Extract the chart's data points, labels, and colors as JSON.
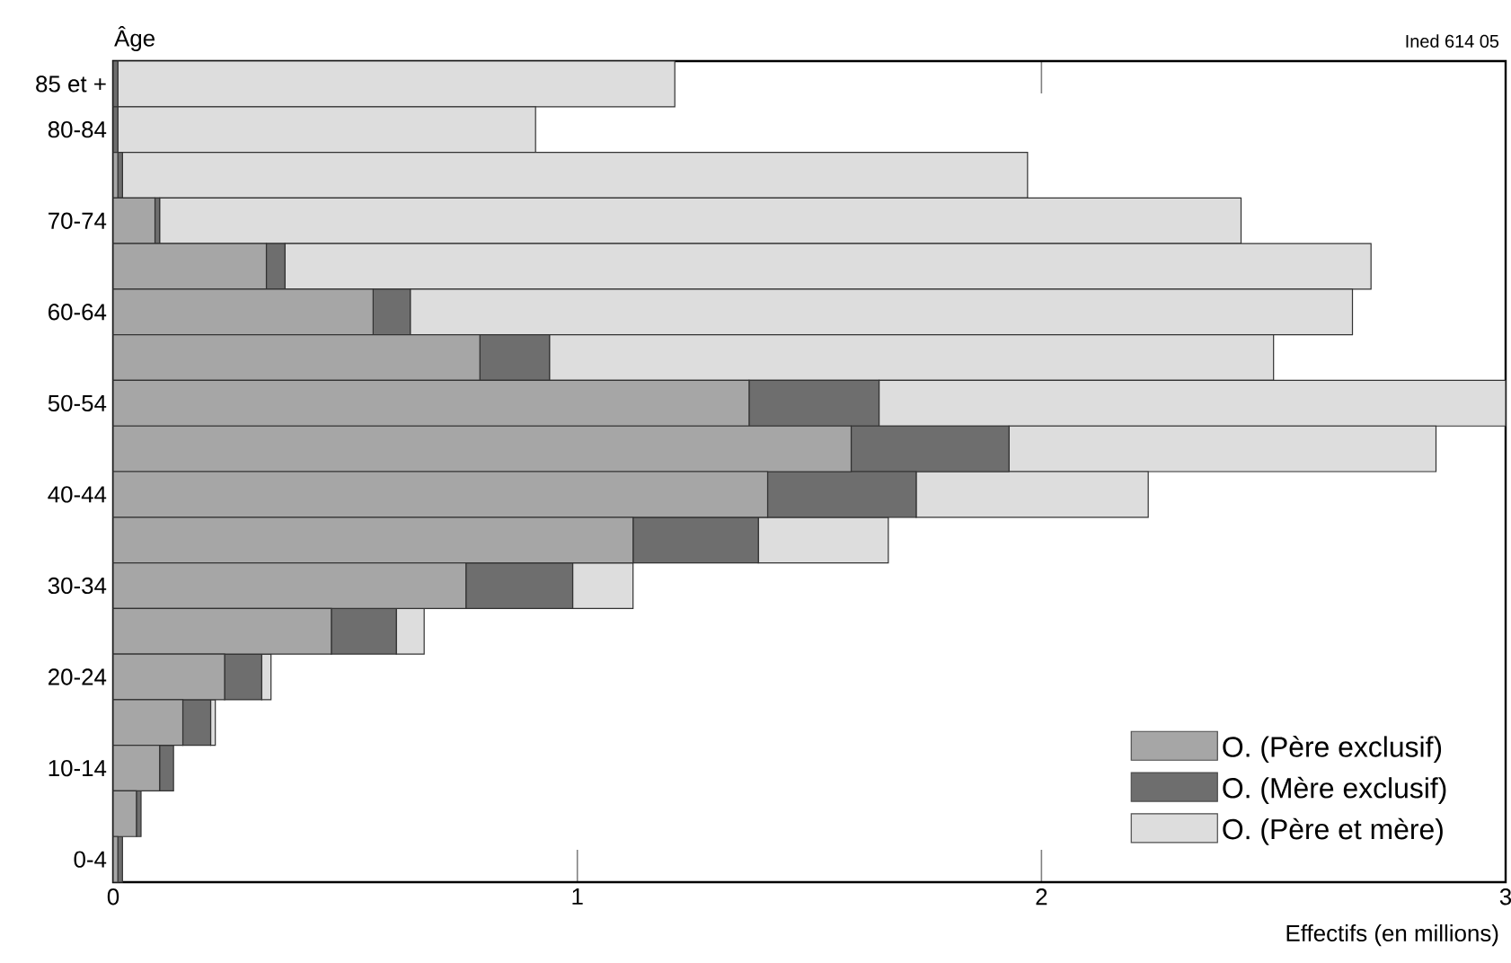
{
  "chart_data": {
    "type": "bar",
    "orientation": "horizontal",
    "stacked": true,
    "ylabel": "Âge",
    "xlabel": "Effectifs (en millions)",
    "annotations": [
      "Ined 614 05"
    ],
    "categories": [
      "85 et +",
      "80-84",
      null,
      "70-74",
      null,
      "60-64",
      null,
      "50-54",
      null,
      "40-44",
      null,
      "30-34",
      null,
      "20-24",
      null,
      "10-14",
      null,
      "0-4"
    ],
    "series": [
      {
        "name": "O. (Père exclusif)",
        "color": "#a6a6a6",
        "values": [
          0,
          0,
          0.01,
          0.09,
          0.33,
          0.56,
          0.79,
          1.37,
          1.59,
          1.41,
          1.12,
          0.76,
          0.47,
          0.24,
          0.15,
          0.1,
          0.05,
          0.01
        ]
      },
      {
        "name": "O. (Mère exclusif)",
        "color": "#6e6e6e",
        "values": [
          0.01,
          0.01,
          0.01,
          0.01,
          0.04,
          0.08,
          0.15,
          0.28,
          0.34,
          0.32,
          0.27,
          0.23,
          0.14,
          0.08,
          0.06,
          0.03,
          0.01,
          0.01
        ]
      },
      {
        "name": "O. (Père et mère)",
        "color": "#dddddd",
        "values": [
          1.2,
          0.9,
          1.95,
          2.33,
          2.34,
          2.03,
          1.56,
          1.35,
          0.92,
          0.5,
          0.28,
          0.13,
          0.06,
          0.02,
          0.01,
          0,
          0,
          0
        ]
      }
    ],
    "xlim": [
      0,
      3
    ],
    "xticks": [
      0,
      1,
      2,
      3
    ],
    "grid": false,
    "legend": "bottom right"
  }
}
